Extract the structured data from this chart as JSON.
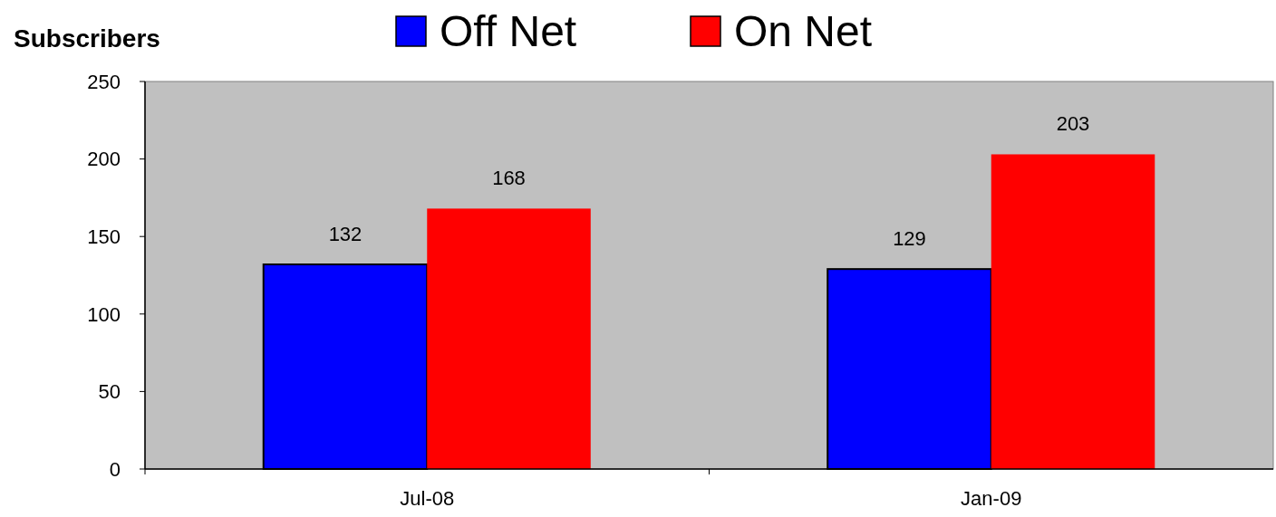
{
  "chart_data": {
    "type": "bar",
    "ylabel": "Subscribers",
    "categories": [
      "Jul-08",
      "Jan-09"
    ],
    "series": [
      {
        "name": "Off Net",
        "color": "#0000ff",
        "values": [
          132,
          129
        ]
      },
      {
        "name": "On Net",
        "color": "#ff0000",
        "values": [
          168,
          203
        ]
      }
    ],
    "ylim": [
      0,
      250
    ],
    "yticks": [
      0,
      50,
      100,
      150,
      200,
      250
    ],
    "grid": false,
    "legend": "top",
    "data_labels": true
  }
}
